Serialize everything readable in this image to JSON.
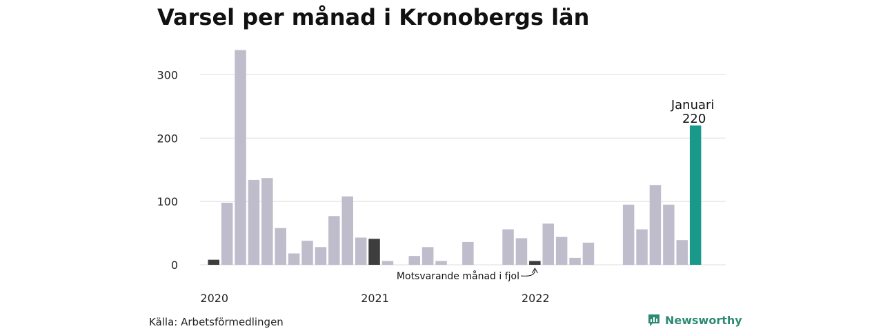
{
  "colors": {
    "bar_default": "#bfbdcc",
    "bar_previous_year": "#3d3d3d",
    "bar_current": "#18998a",
    "grid": "#dddddd",
    "brand": "#2e8b73"
  },
  "icons": {
    "logo": "bar-chart-icon"
  },
  "source": "Källa: Arbetsförmedlingen",
  "brand": "Newsworthy",
  "chart_data": {
    "type": "bar",
    "title": "Varsel per månad i Kronobergs län",
    "xlabel": "",
    "ylabel": "",
    "ylim": [
      0,
      340
    ],
    "yticks": [
      0,
      100,
      200,
      300
    ],
    "grid": true,
    "legend": "none",
    "categories": [
      "2020-01",
      "2020-02",
      "2020-03",
      "2020-04",
      "2020-05",
      "2020-06",
      "2020-07",
      "2020-08",
      "2020-09",
      "2020-10",
      "2020-11",
      "2020-12",
      "2021-01",
      "2021-02",
      "2021-03",
      "2021-04",
      "2021-05",
      "2021-06",
      "2021-07",
      "2021-08",
      "2021-09",
      "2021-10",
      "2021-11",
      "2021-12",
      "2022-01",
      "2022-02",
      "2022-03",
      "2022-04",
      "2022-05",
      "2022-06",
      "2022-07",
      "2022-08",
      "2022-09",
      "2022-10",
      "2022-11",
      "2022-12",
      "2023-01"
    ],
    "values": [
      8,
      98,
      339,
      134,
      137,
      58,
      18,
      38,
      28,
      77,
      108,
      43,
      41,
      6,
      0,
      14,
      28,
      6,
      0,
      36,
      0,
      0,
      56,
      42,
      6,
      65,
      44,
      11,
      35,
      0,
      0,
      95,
      56,
      126,
      95,
      39,
      220
    ],
    "highlight_previous_year": [
      0,
      12,
      24
    ],
    "highlight_current": 36,
    "x_tick_labels": [
      {
        "label": "2020",
        "index": 0
      },
      {
        "label": "2021",
        "index": 12
      },
      {
        "label": "2022",
        "index": 24
      }
    ],
    "annotations": {
      "current_month": "Januari",
      "current_value": "220",
      "previous_year": "Motsvarande månad i fjol"
    }
  }
}
